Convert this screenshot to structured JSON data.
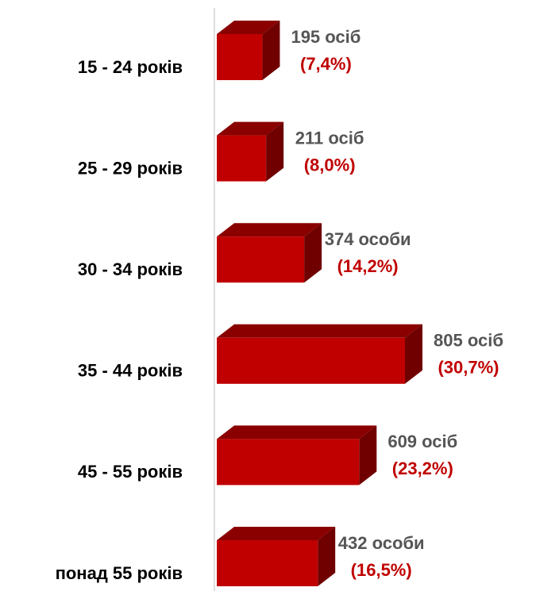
{
  "chart_data": {
    "type": "bar3d_horizontal",
    "categories": [
      "15 - 24 років",
      "25 - 29 років",
      "30 - 34 років",
      "35 - 44 років",
      "45 - 55 років",
      "понад 55 років"
    ],
    "values": [
      195,
      211,
      374,
      805,
      609,
      432
    ],
    "value_labels": [
      "195 осіб",
      "211 осіб",
      "374 особи",
      "805 осіб",
      "609 осіб",
      "432 особи"
    ],
    "percent_values": [
      7.4,
      8.0,
      14.2,
      30.7,
      23.2,
      16.5
    ],
    "percent_labels": [
      "(7,4%)",
      "(8,0%)",
      "(14,2%)",
      "(30,7%)",
      "(23,2%)",
      "(16,5%)"
    ],
    "color": "#c00000"
  }
}
